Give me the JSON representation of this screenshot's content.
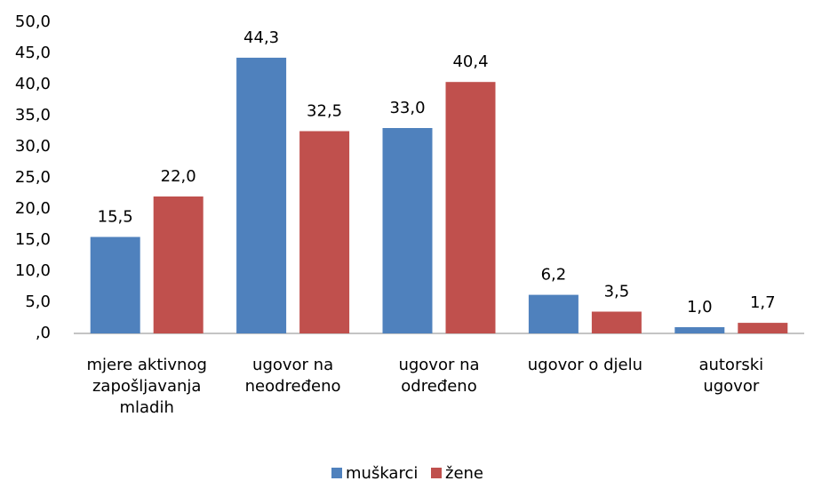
{
  "chart_data": {
    "type": "bar",
    "categories": [
      [
        "mjere aktivnog",
        "zapošljavanja",
        "mladih"
      ],
      [
        "ugovor na",
        "neodređeno"
      ],
      [
        "ugovor na",
        "određeno"
      ],
      [
        "ugovor o djelu"
      ],
      [
        "autorski",
        "ugovor"
      ]
    ],
    "series": [
      {
        "name": "muškarci",
        "color": "#4f81bd",
        "values": [
          15.5,
          44.3,
          33.0,
          6.2,
          1.0
        ],
        "value_labels": [
          "15,5",
          "44,3",
          "33,0",
          "6,2",
          "1,0"
        ]
      },
      {
        "name": "žene",
        "color": "#c0504d",
        "values": [
          22.0,
          32.5,
          40.4,
          3.5,
          1.7
        ],
        "value_labels": [
          "22,0",
          "32,5",
          "40,4",
          "3,5",
          "1,7"
        ]
      }
    ],
    "ylim": [
      0,
      50
    ],
    "yticks": [
      {
        "value": 0,
        "label": ",0"
      },
      {
        "value": 5,
        "label": "5,0"
      },
      {
        "value": 10,
        "label": "10,0"
      },
      {
        "value": 15,
        "label": "15,0"
      },
      {
        "value": 20,
        "label": "20,0"
      },
      {
        "value": 25,
        "label": "25,0"
      },
      {
        "value": 30,
        "label": "30,0"
      },
      {
        "value": 35,
        "label": "35,0"
      },
      {
        "value": 40,
        "label": "40,0"
      },
      {
        "value": 45,
        "label": "45,0"
      },
      {
        "value": 50,
        "label": "50,0"
      }
    ],
    "legend": "bottom"
  }
}
